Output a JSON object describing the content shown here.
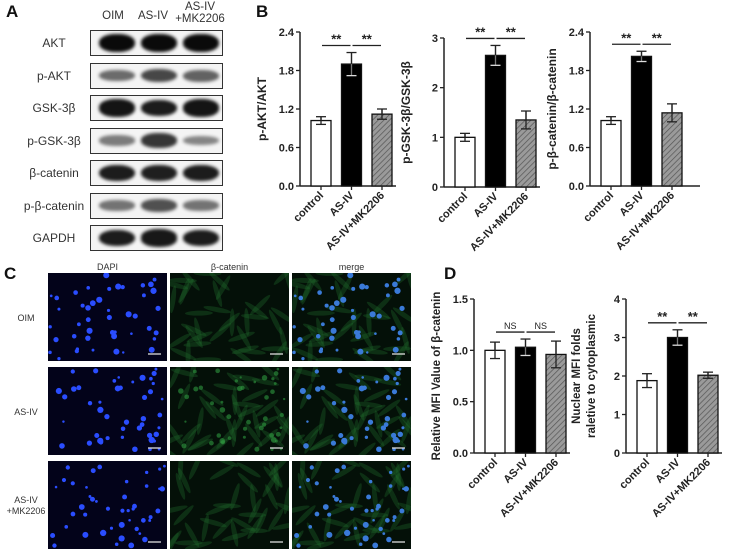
{
  "panels": {
    "A": "A",
    "B": "B",
    "C": "C",
    "D": "D"
  },
  "western_blot": {
    "lanes": [
      "OIM",
      "AS-IV",
      "AS-IV\n+MK2206"
    ],
    "rows": [
      {
        "label": "AKT",
        "intensity": [
          1.0,
          1.0,
          1.0
        ]
      },
      {
        "label": "p-AKT",
        "intensity": [
          0.45,
          0.65,
          0.5
        ]
      },
      {
        "label": "GSK-3β",
        "intensity": [
          0.95,
          0.9,
          0.95
        ]
      },
      {
        "label": "p-GSK-3β",
        "intensity": [
          0.35,
          0.75,
          0.3
        ]
      },
      {
        "label": "β-catenin",
        "intensity": [
          0.9,
          0.88,
          0.9
        ]
      },
      {
        "label": "p-β-catenin",
        "intensity": [
          0.4,
          0.6,
          0.4
        ]
      },
      {
        "label": "GAPDH",
        "intensity": [
          0.9,
          0.92,
          0.9
        ]
      }
    ]
  },
  "immunofluorescence": {
    "columns": [
      "DAPI",
      "β-catenin",
      "merge"
    ],
    "rows": [
      "OIM",
      "AS-IV",
      "AS-IV\n+MK2206"
    ]
  },
  "colors": {
    "control": "#ffffff",
    "AS-IV": "#000000",
    "AS-IV+MK2206": "#8c8c8c"
  },
  "chart_data": [
    {
      "type": "bar",
      "panel": "B",
      "categories": [
        "control",
        "AS-IV",
        "AS-IV+MK2206"
      ],
      "values": [
        1.02,
        1.9,
        1.12
      ],
      "errors": [
        0.06,
        0.18,
        0.08
      ],
      "ylabel": "p-AKT/AKT",
      "ylim": [
        0,
        2.4
      ],
      "yticks": [
        "0.0",
        "0.6",
        "1.2",
        "1.8",
        "2.4"
      ],
      "significance": [
        {
          "pair": [
            0,
            1
          ],
          "label": "**"
        },
        {
          "pair": [
            1,
            2
          ],
          "label": "**"
        }
      ]
    },
    {
      "type": "bar",
      "panel": "B",
      "categories": [
        "control",
        "AS-IV",
        "AS-IV+MK2206"
      ],
      "values": [
        1.0,
        2.65,
        1.35
      ],
      "errors": [
        0.08,
        0.2,
        0.18
      ],
      "ylabel": "p-GSK-3β/GSK-3β",
      "ylim": [
        0,
        3
      ],
      "yticks": [
        "0",
        "1",
        "2",
        "3"
      ],
      "significance": [
        {
          "pair": [
            0,
            1
          ],
          "label": "**"
        },
        {
          "pair": [
            1,
            2
          ],
          "label": "**"
        }
      ]
    },
    {
      "type": "bar",
      "panel": "B",
      "categories": [
        "control",
        "AS-IV",
        "AS-IV+MK2206"
      ],
      "values": [
        1.02,
        2.02,
        1.14
      ],
      "errors": [
        0.06,
        0.08,
        0.14
      ],
      "ylabel": "p-β-catenin/β-catenin",
      "ylim": [
        0,
        2.4
      ],
      "yticks": [
        "0.0",
        "0.6",
        "1.2",
        "1.8",
        "2.4"
      ],
      "significance": [
        {
          "pair": [
            0,
            1
          ],
          "label": "**"
        },
        {
          "pair": [
            1,
            2
          ],
          "label": "**"
        }
      ]
    },
    {
      "type": "bar",
      "panel": "D",
      "categories": [
        "control",
        "AS-IV",
        "AS-IV+MK2206"
      ],
      "values": [
        1.0,
        1.03,
        0.96
      ],
      "errors": [
        0.08,
        0.08,
        0.13
      ],
      "ylabel": "Relative MFI Value of β-catenin",
      "ylim": [
        0,
        1.5
      ],
      "yticks": [
        "0.0",
        "0.5",
        "1.0",
        "1.5"
      ],
      "significance": [
        {
          "pair": [
            0,
            1
          ],
          "label": "NS"
        },
        {
          "pair": [
            1,
            2
          ],
          "label": "NS"
        }
      ]
    },
    {
      "type": "bar",
      "panel": "D",
      "categories": [
        "control",
        "AS-IV",
        "AS-IV+MK2206"
      ],
      "values": [
        1.88,
        3.0,
        2.02
      ],
      "errors": [
        0.18,
        0.2,
        0.08
      ],
      "ylabel": "Nuclear MFI folds\nraletive to cytoplasmic",
      "ylim": [
        0,
        4
      ],
      "yticks": [
        "0",
        "1",
        "2",
        "3",
        "4"
      ],
      "significance": [
        {
          "pair": [
            0,
            1
          ],
          "label": "**"
        },
        {
          "pair": [
            1,
            2
          ],
          "label": "**"
        }
      ]
    }
  ]
}
